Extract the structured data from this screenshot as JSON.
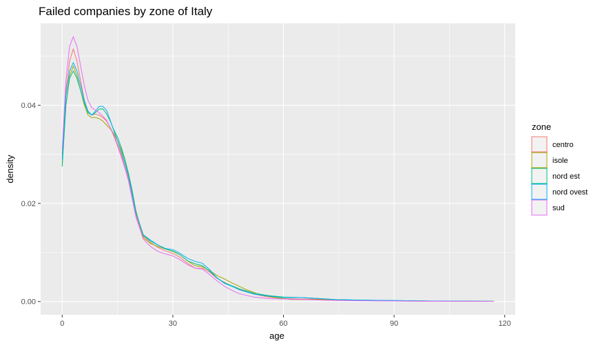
{
  "chart_data": {
    "type": "line",
    "subtype": "density",
    "title": "Failed companies by  zone of Italy",
    "xlabel": "age",
    "ylabel": "density",
    "xlim": [
      -5.85,
      122.85
    ],
    "ylim": [
      -0.0027,
      0.0567
    ],
    "x_ticks": [
      0,
      30,
      60,
      90,
      120
    ],
    "y_ticks": [
      0.0,
      0.02,
      0.04
    ],
    "x_tick_labels": [
      "0",
      "30",
      "60",
      "90",
      "120"
    ],
    "y_tick_labels": [
      "0.00",
      "0.02",
      "0.04"
    ],
    "legend": {
      "title": "zone",
      "position": "right"
    },
    "background": "#ebebeb",
    "grid": true,
    "series": [
      {
        "name": "centro",
        "color": "#F8766D",
        "points": [
          [
            0,
            0.03
          ],
          [
            1,
            0.043
          ],
          [
            2,
            0.049
          ],
          [
            3,
            0.0515
          ],
          [
            4,
            0.049
          ],
          [
            5,
            0.045
          ],
          [
            6,
            0.041
          ],
          [
            7,
            0.0385
          ],
          [
            8,
            0.038
          ],
          [
            9,
            0.0382
          ],
          [
            10,
            0.038
          ],
          [
            11,
            0.0375
          ],
          [
            12,
            0.0368
          ],
          [
            13,
            0.0355
          ],
          [
            14,
            0.034
          ],
          [
            15,
            0.032
          ],
          [
            16,
            0.03
          ],
          [
            17,
            0.0275
          ],
          [
            18,
            0.025
          ],
          [
            19,
            0.021
          ],
          [
            20,
            0.0175
          ],
          [
            22,
            0.0133
          ],
          [
            24,
            0.012
          ],
          [
            26,
            0.011
          ],
          [
            28,
            0.0103
          ],
          [
            30,
            0.0098
          ],
          [
            32,
            0.009
          ],
          [
            34,
            0.0078
          ],
          [
            36,
            0.0068
          ],
          [
            38,
            0.0068
          ],
          [
            40,
            0.006
          ],
          [
            42,
            0.0047
          ],
          [
            45,
            0.0035
          ],
          [
            48,
            0.0025
          ],
          [
            52,
            0.0015
          ],
          [
            56,
            0.0009
          ],
          [
            60,
            0.0006
          ],
          [
            65,
            0.0005
          ],
          [
            70,
            0.0005
          ],
          [
            75,
            0.0003
          ],
          [
            80,
            0.0002
          ],
          [
            90,
            0.0001
          ],
          [
            100,
            5e-05
          ],
          [
            117,
            3e-05
          ]
        ]
      },
      {
        "name": "isole",
        "color": "#A3A500",
        "points": [
          [
            0,
            0.028
          ],
          [
            1,
            0.04
          ],
          [
            2,
            0.046
          ],
          [
            3,
            0.048
          ],
          [
            4,
            0.046
          ],
          [
            5,
            0.043
          ],
          [
            6,
            0.04
          ],
          [
            7,
            0.038
          ],
          [
            8,
            0.0375
          ],
          [
            9,
            0.0375
          ],
          [
            10,
            0.0373
          ],
          [
            11,
            0.0368
          ],
          [
            12,
            0.036
          ],
          [
            13,
            0.0352
          ],
          [
            14,
            0.0342
          ],
          [
            15,
            0.0328
          ],
          [
            16,
            0.031
          ],
          [
            17,
            0.0288
          ],
          [
            18,
            0.026
          ],
          [
            19,
            0.0225
          ],
          [
            20,
            0.0185
          ],
          [
            22,
            0.013
          ],
          [
            24,
            0.0118
          ],
          [
            26,
            0.0112
          ],
          [
            28,
            0.0107
          ],
          [
            30,
            0.0102
          ],
          [
            32,
            0.0095
          ],
          [
            34,
            0.0083
          ],
          [
            36,
            0.0073
          ],
          [
            38,
            0.0071
          ],
          [
            40,
            0.0063
          ],
          [
            42,
            0.0053
          ],
          [
            44,
            0.0046
          ],
          [
            46,
            0.0038
          ],
          [
            50,
            0.0024
          ],
          [
            54,
            0.0013
          ],
          [
            58,
            0.0008
          ],
          [
            62,
            0.0004
          ],
          [
            66,
            0.0004
          ],
          [
            70,
            0.0004
          ],
          [
            75,
            0.0003
          ],
          [
            80,
            0.0002
          ],
          [
            90,
            0.00015
          ],
          [
            100,
            0.0001
          ],
          [
            117,
            5e-05
          ]
        ]
      },
      {
        "name": "nord est",
        "color": "#00BF7D",
        "points": [
          [
            0,
            0.0275
          ],
          [
            1,
            0.04
          ],
          [
            2,
            0.0455
          ],
          [
            3,
            0.047
          ],
          [
            4,
            0.0455
          ],
          [
            5,
            0.043
          ],
          [
            6,
            0.0405
          ],
          [
            7,
            0.0385
          ],
          [
            8,
            0.038
          ],
          [
            9,
            0.0385
          ],
          [
            10,
            0.0392
          ],
          [
            11,
            0.0393
          ],
          [
            12,
            0.0383
          ],
          [
            13,
            0.0368
          ],
          [
            14,
            0.035
          ],
          [
            15,
            0.0335
          ],
          [
            16,
            0.0315
          ],
          [
            17,
            0.029
          ],
          [
            18,
            0.026
          ],
          [
            19,
            0.0225
          ],
          [
            20,
            0.0182
          ],
          [
            22,
            0.0135
          ],
          [
            24,
            0.0123
          ],
          [
            26,
            0.0115
          ],
          [
            28,
            0.0107
          ],
          [
            30,
            0.0103
          ],
          [
            32,
            0.0095
          ],
          [
            34,
            0.0083
          ],
          [
            36,
            0.0077
          ],
          [
            38,
            0.0073
          ],
          [
            40,
            0.0062
          ],
          [
            42,
            0.0048
          ],
          [
            44,
            0.0038
          ],
          [
            46,
            0.0032
          ],
          [
            48,
            0.0026
          ],
          [
            52,
            0.0017
          ],
          [
            56,
            0.0012
          ],
          [
            60,
            0.0009
          ],
          [
            65,
            0.0008
          ],
          [
            70,
            0.0006
          ],
          [
            74,
            0.0004
          ],
          [
            80,
            0.0003
          ],
          [
            90,
            0.0002
          ],
          [
            100,
            0.0001
          ],
          [
            117,
            5e-05
          ]
        ]
      },
      {
        "name": "nord ovest",
        "color": "#00B0F6",
        "points": [
          [
            0,
            0.029
          ],
          [
            1,
            0.042
          ],
          [
            2,
            0.047
          ],
          [
            3,
            0.0487
          ],
          [
            4,
            0.047
          ],
          [
            5,
            0.044
          ],
          [
            6,
            0.041
          ],
          [
            7,
            0.0388
          ],
          [
            8,
            0.038
          ],
          [
            9,
            0.0388
          ],
          [
            10,
            0.0398
          ],
          [
            11,
            0.0398
          ],
          [
            12,
            0.039
          ],
          [
            13,
            0.037
          ],
          [
            14,
            0.0348
          ],
          [
            15,
            0.0328
          ],
          [
            16,
            0.0305
          ],
          [
            17,
            0.0282
          ],
          [
            18,
            0.0255
          ],
          [
            19,
            0.0218
          ],
          [
            20,
            0.018
          ],
          [
            22,
            0.0136
          ],
          [
            24,
            0.0125
          ],
          [
            26,
            0.0115
          ],
          [
            28,
            0.0108
          ],
          [
            30,
            0.0106
          ],
          [
            32,
            0.0098
          ],
          [
            34,
            0.0088
          ],
          [
            36,
            0.0082
          ],
          [
            38,
            0.0078
          ],
          [
            40,
            0.0065
          ],
          [
            42,
            0.0048
          ],
          [
            44,
            0.0037
          ],
          [
            46,
            0.0031
          ],
          [
            48,
            0.0024
          ],
          [
            52,
            0.0015
          ],
          [
            56,
            0.0011
          ],
          [
            60,
            0.0008
          ],
          [
            65,
            0.0008
          ],
          [
            70,
            0.0006
          ],
          [
            74,
            0.0004
          ],
          [
            80,
            0.0003
          ],
          [
            90,
            0.0002
          ],
          [
            100,
            0.0001
          ],
          [
            117,
            5e-05
          ]
        ]
      },
      {
        "name": "sud",
        "color": "#E76BF3",
        "points": [
          [
            0,
            0.031
          ],
          [
            1,
            0.045
          ],
          [
            2,
            0.052
          ],
          [
            3,
            0.054
          ],
          [
            4,
            0.052
          ],
          [
            5,
            0.048
          ],
          [
            6,
            0.044
          ],
          [
            7,
            0.041
          ],
          [
            8,
            0.0395
          ],
          [
            9,
            0.039
          ],
          [
            10,
            0.0385
          ],
          [
            11,
            0.0378
          ],
          [
            12,
            0.037
          ],
          [
            13,
            0.0355
          ],
          [
            14,
            0.0337
          ],
          [
            15,
            0.0317
          ],
          [
            16,
            0.0295
          ],
          [
            17,
            0.0272
          ],
          [
            18,
            0.0245
          ],
          [
            19,
            0.0208
          ],
          [
            20,
            0.0172
          ],
          [
            22,
            0.0127
          ],
          [
            24,
            0.0112
          ],
          [
            26,
            0.0102
          ],
          [
            28,
            0.0097
          ],
          [
            30,
            0.0093
          ],
          [
            32,
            0.0085
          ],
          [
            34,
            0.0075
          ],
          [
            36,
            0.0068
          ],
          [
            38,
            0.0066
          ],
          [
            40,
            0.0055
          ],
          [
            42,
            0.0042
          ],
          [
            44,
            0.0031
          ],
          [
            46,
            0.0023
          ],
          [
            48,
            0.0016
          ],
          [
            52,
            0.0009
          ],
          [
            56,
            0.0006
          ],
          [
            60,
            0.0005
          ],
          [
            65,
            0.0004
          ],
          [
            70,
            0.0003
          ],
          [
            75,
            0.0002
          ],
          [
            80,
            0.00015
          ],
          [
            90,
            0.0001
          ],
          [
            100,
            5e-05
          ],
          [
            117,
            3e-05
          ]
        ]
      }
    ]
  }
}
